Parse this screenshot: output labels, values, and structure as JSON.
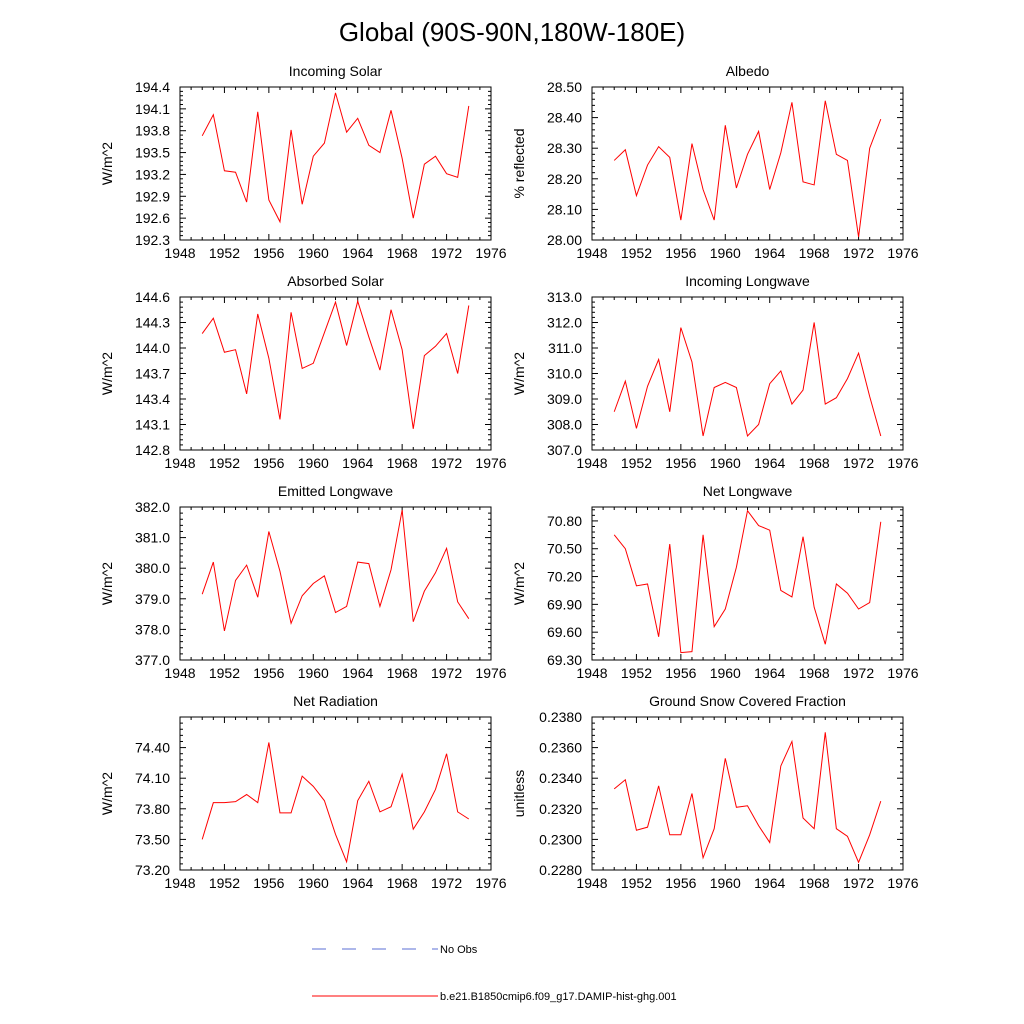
{
  "title": "Global (90S-90N,180W-180E)",
  "colors": {
    "series": "#ff0000",
    "obs": "#5b6fd6",
    "frame": "#000000"
  },
  "legend": [
    {
      "label": "No Obs",
      "style": "dashed",
      "color": "#5b6fd6"
    },
    {
      "label": "b.e21.B1850cmip6.f09_g17.DAMIP-hist-ghg.001",
      "style": "solid",
      "color": "#ff0000"
    }
  ],
  "chart_data": [
    {
      "type": "line",
      "title": "Incoming Solar",
      "ylabel": "W/m^2",
      "xlim": [
        1948,
        1976
      ],
      "ylim": [
        192.3,
        194.4
      ],
      "xticks": [
        "1948",
        "1952",
        "1956",
        "1960",
        "1964",
        "1968",
        "1972",
        "1976"
      ],
      "yticks": [
        "192.3",
        "192.6",
        "192.9",
        "193.2",
        "193.5",
        "193.8",
        "194.1",
        "194.4"
      ],
      "x": [
        1950,
        1951,
        1952,
        1953,
        1954,
        1955,
        1956,
        1957,
        1958,
        1959,
        1960,
        1961,
        1962,
        1963,
        1964,
        1965,
        1966,
        1967,
        1968,
        1969,
        1970,
        1971,
        1972,
        1973,
        1974
      ],
      "series": [
        {
          "name": "b.e21.B1850cmip6.f09_g17.DAMIP-hist-ghg.001",
          "values": [
            193.73,
            194.02,
            193.25,
            193.23,
            192.82,
            194.06,
            192.85,
            192.55,
            193.81,
            192.79,
            193.45,
            193.63,
            194.32,
            193.78,
            193.97,
            193.6,
            193.5,
            194.08,
            193.42,
            192.6,
            193.34,
            193.45,
            193.21,
            193.16,
            194.14
          ]
        }
      ]
    },
    {
      "type": "line",
      "title": "Albedo",
      "ylabel": "% reflected",
      "xlim": [
        1948,
        1976
      ],
      "ylim": [
        28.0,
        28.5
      ],
      "xticks": [
        "1948",
        "1952",
        "1956",
        "1960",
        "1964",
        "1968",
        "1972",
        "1976"
      ],
      "yticks": [
        "28.00",
        "28.10",
        "28.20",
        "28.30",
        "28.40",
        "28.50"
      ],
      "x": [
        1950,
        1951,
        1952,
        1953,
        1954,
        1955,
        1956,
        1957,
        1958,
        1959,
        1960,
        1961,
        1962,
        1963,
        1964,
        1965,
        1966,
        1967,
        1968,
        1969,
        1970,
        1971,
        1972,
        1973,
        1974
      ],
      "series": [
        {
          "name": "b.e21.B1850cmip6.f09_g17.DAMIP-hist-ghg.001",
          "values": [
            28.26,
            28.295,
            28.145,
            28.245,
            28.305,
            28.27,
            28.065,
            28.315,
            28.165,
            28.065,
            28.375,
            28.17,
            28.28,
            28.355,
            28.165,
            28.285,
            28.45,
            28.19,
            28.18,
            28.455,
            28.28,
            28.26,
            28.01,
            28.3,
            28.395
          ]
        }
      ]
    },
    {
      "type": "line",
      "title": "Absorbed Solar",
      "ylabel": "W/m^2",
      "xlim": [
        1948,
        1976
      ],
      "ylim": [
        142.8,
        144.6
      ],
      "xticks": [
        "1948",
        "1952",
        "1956",
        "1960",
        "1964",
        "1968",
        "1972",
        "1976"
      ],
      "yticks": [
        "142.8",
        "143.1",
        "143.4",
        "143.7",
        "144.0",
        "144.3",
        "144.6"
      ],
      "x": [
        1950,
        1951,
        1952,
        1953,
        1954,
        1955,
        1956,
        1957,
        1958,
        1959,
        1960,
        1961,
        1962,
        1963,
        1964,
        1965,
        1966,
        1967,
        1968,
        1969,
        1970,
        1971,
        1972,
        1973,
        1974
      ],
      "series": [
        {
          "name": "b.e21.B1850cmip6.f09_g17.DAMIP-hist-ghg.001",
          "values": [
            144.17,
            144.35,
            143.95,
            143.98,
            143.46,
            144.4,
            143.88,
            143.16,
            144.42,
            143.76,
            143.82,
            144.18,
            144.54,
            144.03,
            144.55,
            144.13,
            143.74,
            144.45,
            143.98,
            143.05,
            143.91,
            144.02,
            144.17,
            143.7,
            144.5
          ]
        }
      ]
    },
    {
      "type": "line",
      "title": "Incoming Longwave",
      "ylabel": "W/m^2",
      "xlim": [
        1948,
        1976
      ],
      "ylim": [
        307.0,
        313.0
      ],
      "xticks": [
        "1948",
        "1952",
        "1956",
        "1960",
        "1964",
        "1968",
        "1972",
        "1976"
      ],
      "yticks": [
        "307.0",
        "308.0",
        "309.0",
        "310.0",
        "311.0",
        "312.0",
        "313.0"
      ],
      "x": [
        1950,
        1951,
        1952,
        1953,
        1954,
        1955,
        1956,
        1957,
        1958,
        1959,
        1960,
        1961,
        1962,
        1963,
        1964,
        1965,
        1966,
        1967,
        1968,
        1969,
        1970,
        1971,
        1972,
        1973,
        1974
      ],
      "series": [
        {
          "name": "b.e21.B1850cmip6.f09_g17.DAMIP-hist-ghg.001",
          "values": [
            308.5,
            309.7,
            307.85,
            309.5,
            310.55,
            308.5,
            311.8,
            310.45,
            307.55,
            309.45,
            309.65,
            309.45,
            307.55,
            308.0,
            309.6,
            310.1,
            308.8,
            309.35,
            312.0,
            308.8,
            309.05,
            309.8,
            310.8,
            309.1,
            307.55
          ]
        }
      ]
    },
    {
      "type": "line",
      "title": "Emitted Longwave",
      "ylabel": "W/m^2",
      "xlim": [
        1948,
        1976
      ],
      "ylim": [
        377.0,
        382.0
      ],
      "xticks": [
        "1948",
        "1952",
        "1956",
        "1960",
        "1964",
        "1968",
        "1972",
        "1976"
      ],
      "yticks": [
        "377.0",
        "378.0",
        "379.0",
        "380.0",
        "381.0",
        "382.0"
      ],
      "x": [
        1950,
        1951,
        1952,
        1953,
        1954,
        1955,
        1956,
        1957,
        1958,
        1959,
        1960,
        1961,
        1962,
        1963,
        1964,
        1965,
        1966,
        1967,
        1968,
        1969,
        1970,
        1971,
        1972,
        1973,
        1974
      ],
      "series": [
        {
          "name": "b.e21.B1850cmip6.f09_g17.DAMIP-hist-ghg.001",
          "values": [
            379.15,
            380.2,
            377.95,
            379.6,
            380.1,
            379.05,
            381.2,
            379.9,
            378.2,
            379.1,
            379.5,
            379.75,
            378.55,
            378.75,
            380.2,
            380.15,
            378.75,
            379.95,
            381.9,
            378.25,
            379.25,
            379.85,
            380.65,
            378.9,
            378.35
          ]
        }
      ]
    },
    {
      "type": "line",
      "title": "Net Longwave",
      "ylabel": "W/m^2",
      "xlim": [
        1948,
        1976
      ],
      "ylim": [
        69.3,
        70.95
      ],
      "xticks": [
        "1948",
        "1952",
        "1956",
        "1960",
        "1964",
        "1968",
        "1972",
        "1976"
      ],
      "yticks": [
        "69.30",
        "69.60",
        "69.90",
        "70.20",
        "70.50",
        "70.80"
      ],
      "x": [
        1950,
        1951,
        1952,
        1953,
        1954,
        1955,
        1956,
        1957,
        1958,
        1959,
        1960,
        1961,
        1962,
        1963,
        1964,
        1965,
        1966,
        1967,
        1968,
        1969,
        1970,
        1971,
        1972,
        1973,
        1974
      ],
      "series": [
        {
          "name": "b.e21.B1850cmip6.f09_g17.DAMIP-hist-ghg.001",
          "values": [
            70.65,
            70.5,
            70.1,
            70.12,
            69.55,
            70.55,
            69.38,
            69.39,
            70.65,
            69.66,
            69.85,
            70.3,
            70.91,
            70.75,
            70.7,
            70.05,
            69.98,
            70.63,
            69.87,
            69.47,
            70.12,
            70.02,
            69.85,
            69.92,
            70.79
          ]
        }
      ]
    },
    {
      "type": "line",
      "title": "Net Radiation",
      "ylabel": "W/m^2",
      "xlim": [
        1948,
        1976
      ],
      "ylim": [
        73.2,
        74.7
      ],
      "xticks": [
        "1948",
        "1952",
        "1956",
        "1960",
        "1964",
        "1968",
        "1972",
        "1976"
      ],
      "yticks": [
        "73.20",
        "73.50",
        "73.80",
        "74.10",
        "74.40"
      ],
      "x": [
        1950,
        1951,
        1952,
        1953,
        1954,
        1955,
        1956,
        1957,
        1958,
        1959,
        1960,
        1961,
        1962,
        1963,
        1964,
        1965,
        1966,
        1967,
        1968,
        1969,
        1970,
        1971,
        1972,
        1973,
        1974
      ],
      "series": [
        {
          "name": "b.e21.B1850cmip6.f09_g17.DAMIP-hist-ghg.001",
          "values": [
            73.5,
            73.86,
            73.86,
            73.87,
            73.94,
            73.86,
            74.45,
            73.76,
            73.76,
            74.12,
            74.02,
            73.88,
            73.55,
            73.28,
            73.88,
            74.07,
            73.77,
            73.82,
            74.14,
            73.6,
            73.77,
            73.99,
            74.34,
            73.77,
            73.7
          ]
        }
      ]
    },
    {
      "type": "line",
      "title": "Ground Snow Covered Fraction",
      "ylabel": "unitless",
      "xlim": [
        1948,
        1976
      ],
      "ylim": [
        0.228,
        0.238
      ],
      "xticks": [
        "1948",
        "1952",
        "1956",
        "1960",
        "1964",
        "1968",
        "1972",
        "1976"
      ],
      "yticks": [
        "0.2280",
        "0.2300",
        "0.2320",
        "0.2340",
        "0.2360",
        "0.2380"
      ],
      "x": [
        1950,
        1951,
        1952,
        1953,
        1954,
        1955,
        1956,
        1957,
        1958,
        1959,
        1960,
        1961,
        1962,
        1963,
        1964,
        1965,
        1966,
        1967,
        1968,
        1969,
        1970,
        1971,
        1972,
        1973,
        1974
      ],
      "series": [
        {
          "name": "b.e21.B1850cmip6.f09_g17.DAMIP-hist-ghg.001",
          "values": [
            0.2333,
            0.2339,
            0.2306,
            0.2308,
            0.2335,
            0.2303,
            0.2303,
            0.233,
            0.2288,
            0.2307,
            0.2353,
            0.2321,
            0.2322,
            0.2309,
            0.2298,
            0.2348,
            0.2364,
            0.2314,
            0.2307,
            0.237,
            0.2307,
            0.2302,
            0.2285,
            0.2303,
            0.2325
          ]
        }
      ]
    }
  ]
}
